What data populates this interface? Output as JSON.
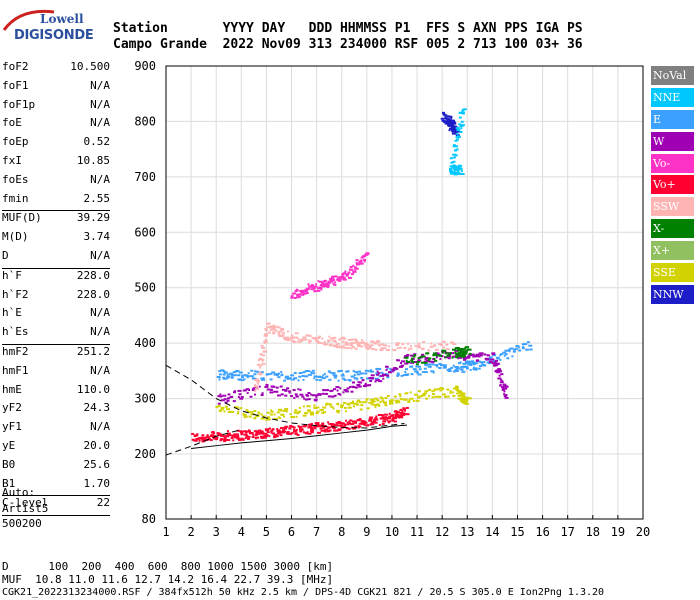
{
  "logo": {
    "line1": "Lowell",
    "line2": "DIGISONDE"
  },
  "header": {
    "line1": "Station       YYYY DAY   DDD HHMMSS P1  FFS S AXN PPS IGA PS",
    "line2": "Campo Grande  2022 Nov09 313 234000 RSF 005 2 713 100 03+ 36"
  },
  "params": [
    {
      "name": "foF2",
      "value": "10.500"
    },
    {
      "name": "foF1",
      "value": "N/A"
    },
    {
      "name": "foF1p",
      "value": "N/A"
    },
    {
      "name": "foE",
      "value": "N/A"
    },
    {
      "name": "foEp",
      "value": "0.52"
    },
    {
      "name": "fxI",
      "value": "10.85"
    },
    {
      "name": "foEs",
      "value": "N/A"
    },
    {
      "name": "fmin",
      "value": "2.55",
      "sep": true
    },
    {
      "name": "MUF(D)",
      "value": "39.29"
    },
    {
      "name": "M(D)",
      "value": "3.74"
    },
    {
      "name": "D",
      "value": "N/A",
      "sep": true
    },
    {
      "name": "h`F",
      "value": "228.0"
    },
    {
      "name": "h`F2",
      "value": "228.0"
    },
    {
      "name": "h`E",
      "value": "N/A"
    },
    {
      "name": "h`Es",
      "value": "N/A",
      "sep": true
    },
    {
      "name": "hmF2",
      "value": "251.2"
    },
    {
      "name": "hmF1",
      "value": "N/A"
    },
    {
      "name": "hmE",
      "value": "110.0"
    },
    {
      "name": "yF2",
      "value": "24.3"
    },
    {
      "name": "yF1",
      "value": "N/A"
    },
    {
      "name": "yE",
      "value": "20.0"
    },
    {
      "name": "B0",
      "value": "25.6"
    },
    {
      "name": "B1",
      "value": "1.70",
      "sep": true
    },
    {
      "name": "C-level",
      "value": "22",
      "sep": true
    }
  ],
  "auto": {
    "line1": "Auto:",
    "line2": "Artist5",
    "line3": "500200"
  },
  "legend": [
    {
      "label": "NoVal",
      "color": "#808080"
    },
    {
      "label": "NNE",
      "color": "#00c8ff"
    },
    {
      "label": "E",
      "color": "#3ca0ff"
    },
    {
      "label": "W",
      "color": "#a000b4"
    },
    {
      "label": "Vo-",
      "color": "#ff32c8"
    },
    {
      "label": "Vo+",
      "color": "#ff0030"
    },
    {
      "label": "SSW",
      "color": "#ffb4b4"
    },
    {
      "label": "X-",
      "color": "#008000"
    },
    {
      "label": "X+",
      "color": "#90c060"
    },
    {
      "label": "SSE",
      "color": "#d2d200"
    },
    {
      "label": "NNW",
      "color": "#1e1ec8"
    }
  ],
  "footer": {
    "line1": "D      100  200  400  600  800 1000 1500 3000 [km]",
    "line2": "MUF  10.8 11.0 11.6 12.7 14.2 16.4 22.7 39.3 [MHz]",
    "line3": "CGK21_2022313234000.RSF / 384fx512h 50 kHz 2.5 km / DPS-4D CGK21 821 / 20.5 S 305.0 E Ion2Png 1.3.20"
  },
  "chart_data": {
    "type": "scatter",
    "title": "",
    "xlabel": "",
    "ylabel": "",
    "xlim": [
      1,
      20
    ],
    "ylim": [
      80,
      900
    ],
    "x_ticks": [
      "1",
      "2",
      "3",
      "4",
      "5",
      "6",
      "7",
      "8",
      "9",
      "10",
      "11",
      "12",
      "13",
      "14",
      "15",
      "16",
      "17",
      "18",
      "19",
      "20"
    ],
    "y_ticks": [
      "80",
      "200",
      "300",
      "400",
      "500",
      "600",
      "700",
      "800",
      "900"
    ],
    "series": [
      {
        "name": "Vo+",
        "points": [
          [
            2.0,
            231
          ],
          [
            3.0,
            233
          ],
          [
            4.0,
            236
          ],
          [
            5.0,
            240
          ],
          [
            6.0,
            244
          ],
          [
            7.0,
            249
          ],
          [
            8.0,
            254
          ],
          [
            9.0,
            259
          ],
          [
            10.0,
            268
          ],
          [
            10.5,
            278
          ]
        ]
      },
      {
        "name": "SSE",
        "points": [
          [
            3.0,
            282
          ],
          [
            5.0,
            272
          ],
          [
            7.0,
            282
          ],
          [
            9.0,
            292
          ],
          [
            10.5,
            304
          ],
          [
            12.5,
            316
          ],
          [
            13.0,
            293
          ]
        ]
      },
      {
        "name": "E",
        "points": [
          [
            3.0,
            345
          ],
          [
            4.5,
            343
          ],
          [
            6.5,
            343
          ],
          [
            8.5,
            343
          ],
          [
            10.5,
            352
          ],
          [
            12.5,
            358
          ],
          [
            13.5,
            362
          ],
          [
            15.5,
            400
          ]
        ]
      },
      {
        "name": "W",
        "points": [
          [
            3.0,
            300
          ],
          [
            5.0,
            318
          ],
          [
            7.0,
            306
          ],
          [
            9.0,
            330
          ],
          [
            10.5,
            372
          ],
          [
            12.5,
            380
          ],
          [
            14.0,
            376
          ],
          [
            14.5,
            305
          ]
        ]
      },
      {
        "name": "SSW",
        "points": [
          [
            4.5,
            315
          ],
          [
            5.0,
            430
          ],
          [
            6.0,
            412
          ],
          [
            7.5,
            405
          ],
          [
            8.5,
            400
          ],
          [
            9.5,
            398
          ],
          [
            12.5,
            396
          ]
        ]
      },
      {
        "name": "X-",
        "points": [
          [
            10.5,
            368
          ],
          [
            12.5,
            385
          ],
          [
            13.0,
            386
          ]
        ]
      },
      {
        "name": "NNW",
        "points": [
          [
            12.0,
            810
          ],
          [
            12.5,
            785
          ],
          [
            12.2,
            808
          ]
        ]
      },
      {
        "name": "NNE",
        "points": [
          [
            12.7,
            715
          ],
          [
            12.3,
            712
          ],
          [
            12.8,
            830
          ]
        ]
      },
      {
        "name": "Vo-",
        "points": [
          [
            6.0,
            489
          ],
          [
            7.0,
            505
          ],
          [
            8.0,
            520
          ],
          [
            9.0,
            560
          ]
        ]
      }
    ]
  }
}
